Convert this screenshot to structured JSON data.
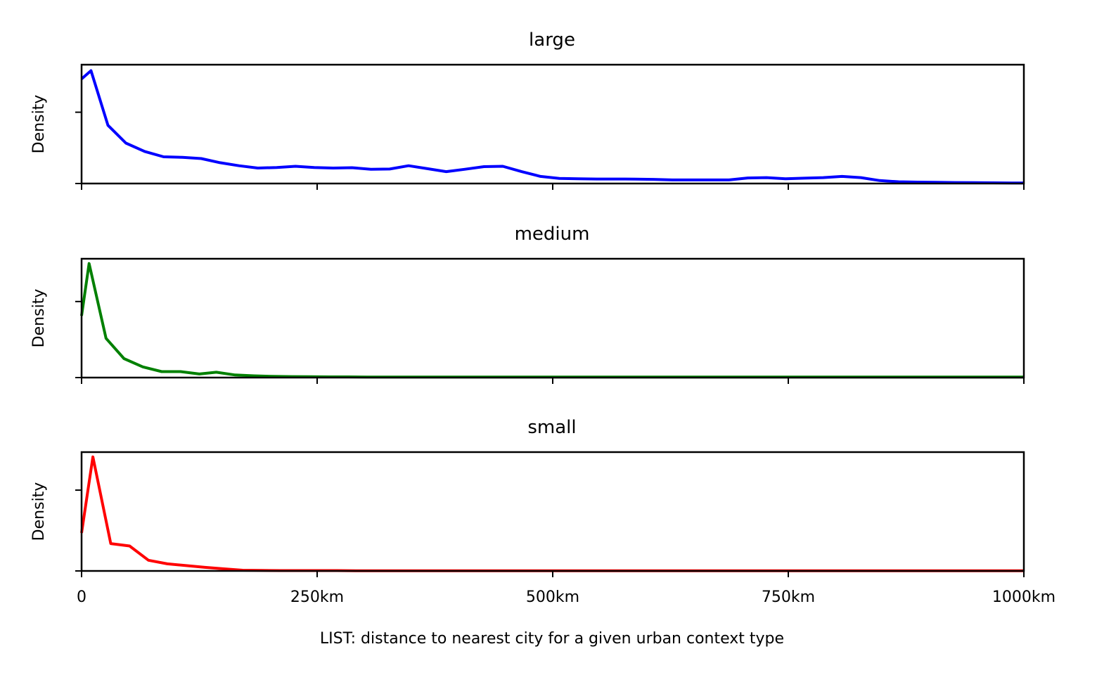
{
  "xlabel": "LIST: distance to nearest city for a given urban context type",
  "x_tick_labels": [
    "0",
    "250km",
    "500km",
    "750km",
    "1000km"
  ],
  "chart_data": [
    {
      "type": "line",
      "title": "large",
      "ylabel": "Density",
      "xlim": [
        0,
        1000
      ],
      "ylim": [
        0,
        1.0
      ],
      "y_ticks": [
        0,
        0.6
      ],
      "grid": false,
      "color": "#0000ff",
      "series": [
        {
          "x": [
            0,
            10,
            28,
            47,
            67,
            87,
            107,
            127,
            147,
            167,
            187,
            207,
            227,
            247,
            267,
            287,
            307,
            327,
            347,
            367,
            387,
            407,
            427,
            447,
            467,
            487,
            507,
            527,
            547,
            567,
            587,
            607,
            627,
            647,
            667,
            687,
            707,
            727,
            747,
            767,
            787,
            807,
            827,
            847,
            867,
            887,
            907,
            927,
            947,
            967,
            987,
            1000
          ],
          "y": [
            0.88,
            0.95,
            0.49,
            0.34,
            0.27,
            0.225,
            0.22,
            0.21,
            0.175,
            0.15,
            0.13,
            0.135,
            0.145,
            0.135,
            0.13,
            0.133,
            0.12,
            0.122,
            0.15,
            0.125,
            0.1,
            0.12,
            0.142,
            0.145,
            0.1,
            0.06,
            0.043,
            0.04,
            0.038,
            0.038,
            0.037,
            0.035,
            0.03,
            0.03,
            0.03,
            0.03,
            0.047,
            0.05,
            0.04,
            0.045,
            0.05,
            0.06,
            0.05,
            0.025,
            0.015,
            0.012,
            0.01,
            0.008,
            0.007,
            0.006,
            0.005,
            0.005
          ]
        }
      ]
    },
    {
      "type": "line",
      "title": "medium",
      "ylabel": "Density",
      "xlim": [
        0,
        1000
      ],
      "ylim": [
        0,
        1.0
      ],
      "y_ticks": [
        0,
        0.64
      ],
      "grid": false,
      "color": "#008000",
      "series": [
        {
          "x": [
            0,
            8,
            26,
            45,
            65,
            85,
            105,
            125,
            143,
            163,
            183,
            203,
            223,
            243,
            263,
            283,
            303,
            323,
            343,
            363,
            383,
            403,
            423,
            443,
            463,
            483,
            503,
            523,
            543,
            563,
            583,
            603,
            623,
            643,
            663,
            683,
            703,
            723,
            743,
            763,
            783,
            803,
            823,
            843,
            863,
            883,
            903,
            923,
            943,
            963,
            983,
            1000
          ],
          "y": [
            0.52,
            0.96,
            0.33,
            0.16,
            0.09,
            0.05,
            0.05,
            0.03,
            0.045,
            0.022,
            0.015,
            0.01,
            0.008,
            0.007,
            0.006,
            0.006,
            0.005,
            0.005,
            0.005,
            0.005,
            0.005,
            0.005,
            0.005,
            0.004,
            0.004,
            0.004,
            0.004,
            0.004,
            0.004,
            0.004,
            0.004,
            0.004,
            0.004,
            0.004,
            0.004,
            0.004,
            0.004,
            0.004,
            0.004,
            0.004,
            0.004,
            0.004,
            0.004,
            0.004,
            0.004,
            0.004,
            0.004,
            0.004,
            0.004,
            0.004,
            0.004,
            0.004
          ]
        }
      ]
    },
    {
      "type": "line",
      "title": "small",
      "ylabel": "Density",
      "xlim": [
        0,
        1000
      ],
      "ylim": [
        0,
        1.0
      ],
      "y_ticks": [
        0,
        0.68
      ],
      "grid": false,
      "color": "#ff0000",
      "series": [
        {
          "x": [
            0,
            12,
            31,
            51,
            71,
            91,
            111,
            131,
            151,
            171,
            191,
            211,
            231,
            251,
            271,
            291,
            311,
            331,
            351,
            371,
            391,
            411,
            431,
            451,
            471,
            491,
            511,
            531,
            551,
            571,
            591,
            611,
            631,
            651,
            671,
            691,
            711,
            731,
            751,
            771,
            791,
            811,
            831,
            851,
            871,
            891,
            911,
            931,
            951,
            971,
            991,
            1000
          ],
          "y": [
            0.32,
            0.96,
            0.23,
            0.21,
            0.09,
            0.06,
            0.045,
            0.03,
            0.018,
            0.006,
            0.004,
            0.003,
            0.003,
            0.003,
            0.003,
            0.002,
            0.002,
            0.002,
            0.002,
            0.002,
            0.002,
            0.002,
            0.002,
            0.002,
            0.002,
            0.002,
            0.002,
            0.002,
            0.002,
            0.002,
            0.002,
            0.002,
            0.002,
            0.002,
            0.002,
            0.002,
            0.002,
            0.002,
            0.002,
            0.002,
            0.002,
            0.002,
            0.002,
            0.002,
            0.002,
            0.002,
            0.002,
            0.002,
            0.002,
            0.002,
            0.002,
            0.002
          ]
        }
      ]
    }
  ]
}
